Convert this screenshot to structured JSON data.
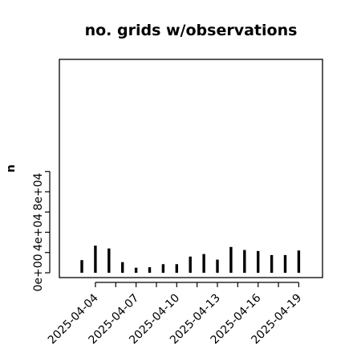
{
  "chart_data": {
    "type": "bar",
    "title": "no. grids w/observations",
    "xlabel": "",
    "ylabel": "n",
    "ylim": [
      0,
      100000
    ],
    "y_ticks": [
      0,
      40000,
      80000
    ],
    "y_tick_labels": [
      "0e+00",
      "4e+04",
      "8e+04"
    ],
    "highlight_color": "#228B22",
    "bar_color": "#000000",
    "x_tick_labels": [
      "2025-04-04",
      "2025-04-07",
      "2025-04-10",
      "2025-04-13",
      "2025-04-16",
      "2025-04-19"
    ],
    "x_tick_colors": [
      "#000000",
      "#000000",
      "#228B22",
      "#000000",
      "#000000",
      "#000000"
    ],
    "categories": [
      "2025-04-03",
      "2025-04-04",
      "2025-04-05",
      "2025-04-06",
      "2025-04-07",
      "2025-04-08",
      "2025-04-09",
      "2025-04-10",
      "2025-04-11",
      "2025-04-12",
      "2025-04-13",
      "2025-04-14",
      "2025-04-15",
      "2025-04-16",
      "2025-04-17",
      "2025-04-18",
      "2025-04-19"
    ],
    "values": [
      12500,
      26800,
      24000,
      10500,
      5000,
      5500,
      8500,
      8500,
      16000,
      18500,
      13000,
      25500,
      22500,
      21500,
      17500,
      17500,
      22000
    ]
  }
}
